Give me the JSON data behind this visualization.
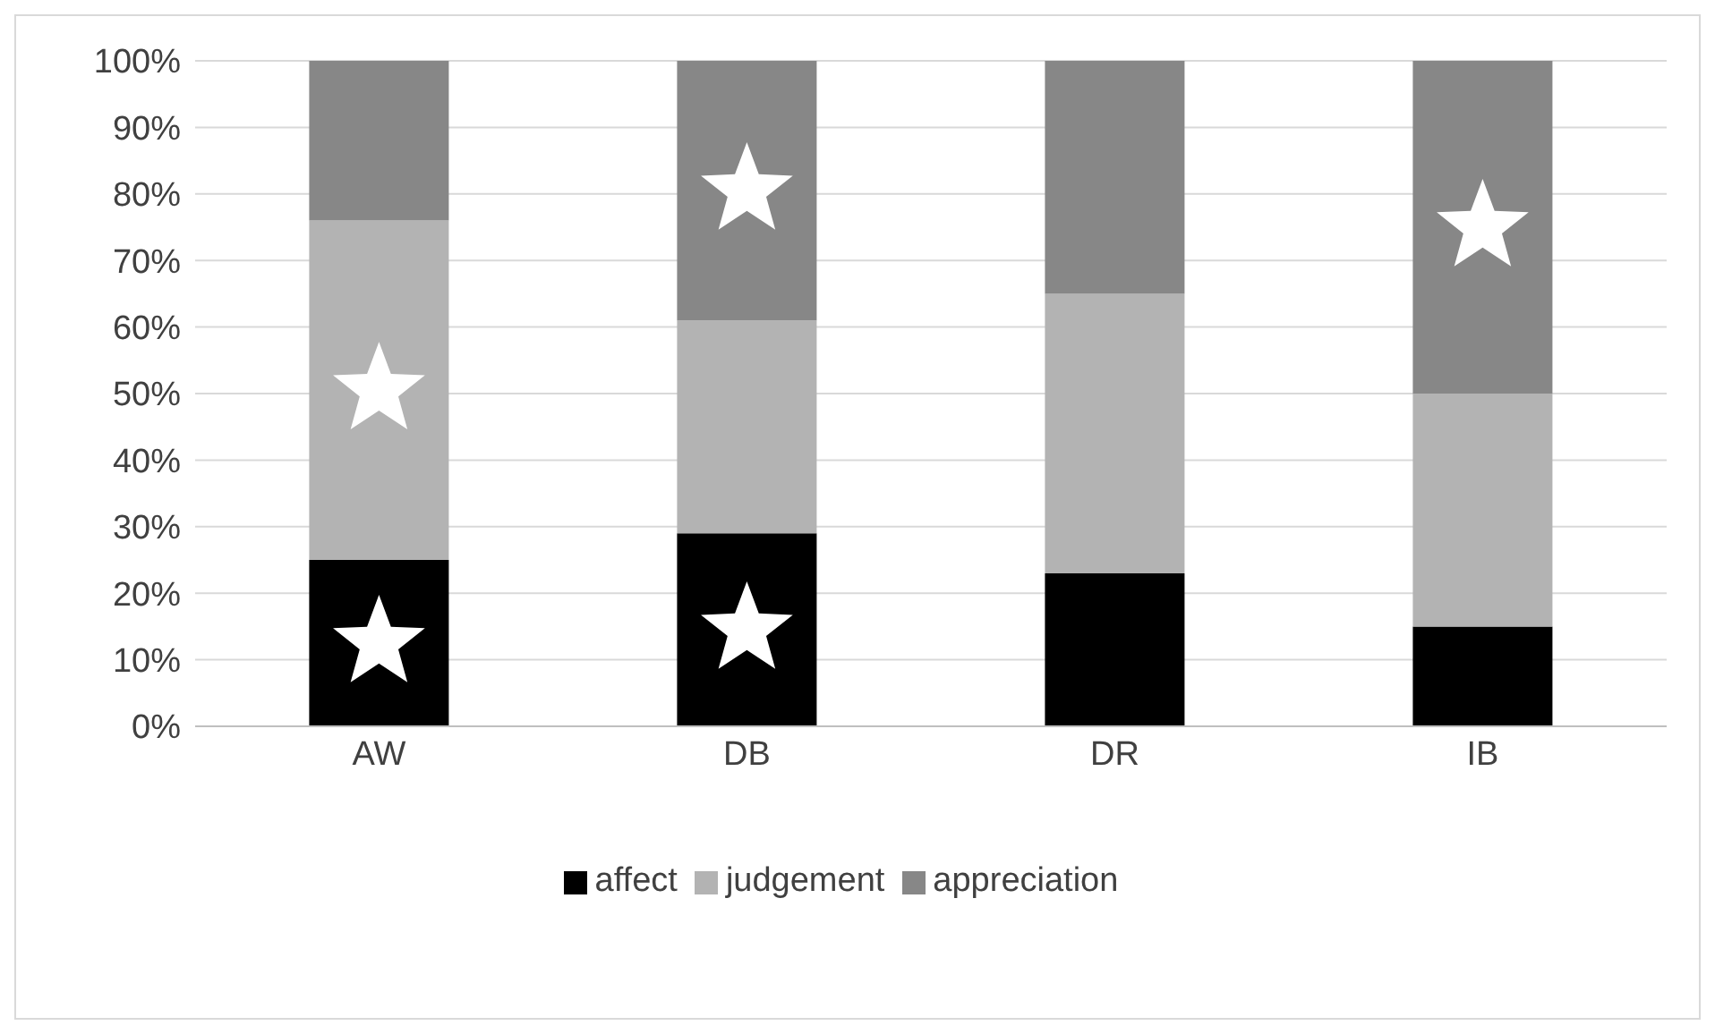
{
  "chart_data": {
    "type": "bar",
    "stacked": true,
    "categories": [
      "AW",
      "DB",
      "DR",
      "IB"
    ],
    "series": [
      {
        "name": "affect",
        "color": "#000000",
        "values": [
          25,
          29,
          23,
          15
        ]
      },
      {
        "name": "judgement",
        "color": "#b3b3b3",
        "values": [
          51,
          32,
          42,
          35
        ]
      },
      {
        "name": "appreciation",
        "color": "#878787",
        "values": [
          24,
          39,
          35,
          50
        ]
      }
    ],
    "ylim": [
      0,
      100
    ],
    "yticks": [
      {
        "value": 0,
        "label": "0%"
      },
      {
        "value": 10,
        "label": "10%"
      },
      {
        "value": 20,
        "label": "20%"
      },
      {
        "value": 30,
        "label": "30%"
      },
      {
        "value": 40,
        "label": "40%"
      },
      {
        "value": 50,
        "label": "50%"
      },
      {
        "value": 60,
        "label": "60%"
      },
      {
        "value": 70,
        "label": "70%"
      },
      {
        "value": 80,
        "label": "80%"
      },
      {
        "value": 90,
        "label": "90%"
      },
      {
        "value": 100,
        "label": "100%"
      }
    ],
    "grid": "y",
    "legend": "bottom"
  }
}
